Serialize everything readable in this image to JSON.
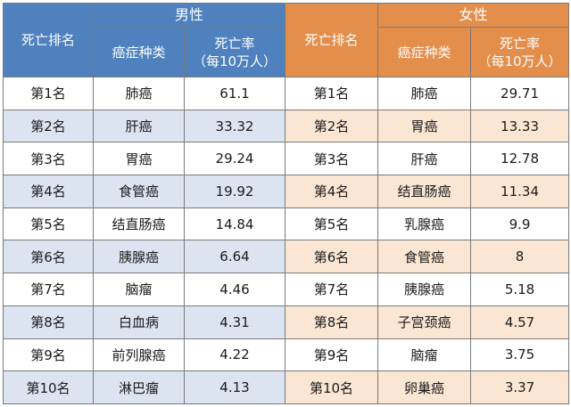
{
  "header": {
    "male_group": "男性",
    "female_group": "女性",
    "rank": "死亡排名",
    "cancer_type": "癌症种类",
    "rate_line1": "死亡率",
    "rate_line2": "（每10万人）"
  },
  "rows": [
    {
      "rank": "第1名",
      "male_type": "肺癌",
      "male_rate": "61.1",
      "female_rank": "第1名",
      "female_type": "肺癌",
      "female_rate": "29.71"
    },
    {
      "rank": "第2名",
      "male_type": "肝癌",
      "male_rate": "33.32",
      "female_rank": "第2名",
      "female_type": "胃癌",
      "female_rate": "13.33"
    },
    {
      "rank": "第3名",
      "male_type": "胃癌",
      "male_rate": "29.24",
      "female_rank": "第3名",
      "female_type": "肝癌",
      "female_rate": "12.78"
    },
    {
      "rank": "第4名",
      "male_type": "食管癌",
      "male_rate": "19.92",
      "female_rank": "第4名",
      "female_type": "结直肠癌",
      "female_rate": "11.34"
    },
    {
      "rank": "第5名",
      "male_type": "结直肠癌",
      "male_rate": "14.84",
      "female_rank": "第5名",
      "female_type": "乳腺癌",
      "female_rate": "9.9"
    },
    {
      "rank": "第6名",
      "male_type": "胰腺癌",
      "male_rate": "6.64",
      "female_rank": "第6名",
      "female_type": "食管癌",
      "female_rate": "8"
    },
    {
      "rank": "第7名",
      "male_type": "脑瘤",
      "male_rate": "4.46",
      "female_rank": "第7名",
      "female_type": "胰腺癌",
      "female_rate": "5.18"
    },
    {
      "rank": "第8名",
      "male_type": "白血病",
      "male_rate": "4.31",
      "female_rank": "第8名",
      "female_type": "子宫颈癌",
      "female_rate": "4.57"
    },
    {
      "rank": "第9名",
      "male_type": "前列腺癌",
      "male_rate": "4.22",
      "female_rank": "第9名",
      "female_type": "脑瘤",
      "female_rate": "3.75"
    },
    {
      "rank": "第10名",
      "male_type": "淋巴瘤",
      "male_rate": "4.13",
      "female_rank": "第10名",
      "female_type": "卵巢癌",
      "female_rate": "3.37"
    }
  ],
  "colors": {
    "male_header": "#4e81bd",
    "female_header": "#e48e4c",
    "male_stripe": "#dbe4f0",
    "female_stripe": "#fbe6d4"
  }
}
